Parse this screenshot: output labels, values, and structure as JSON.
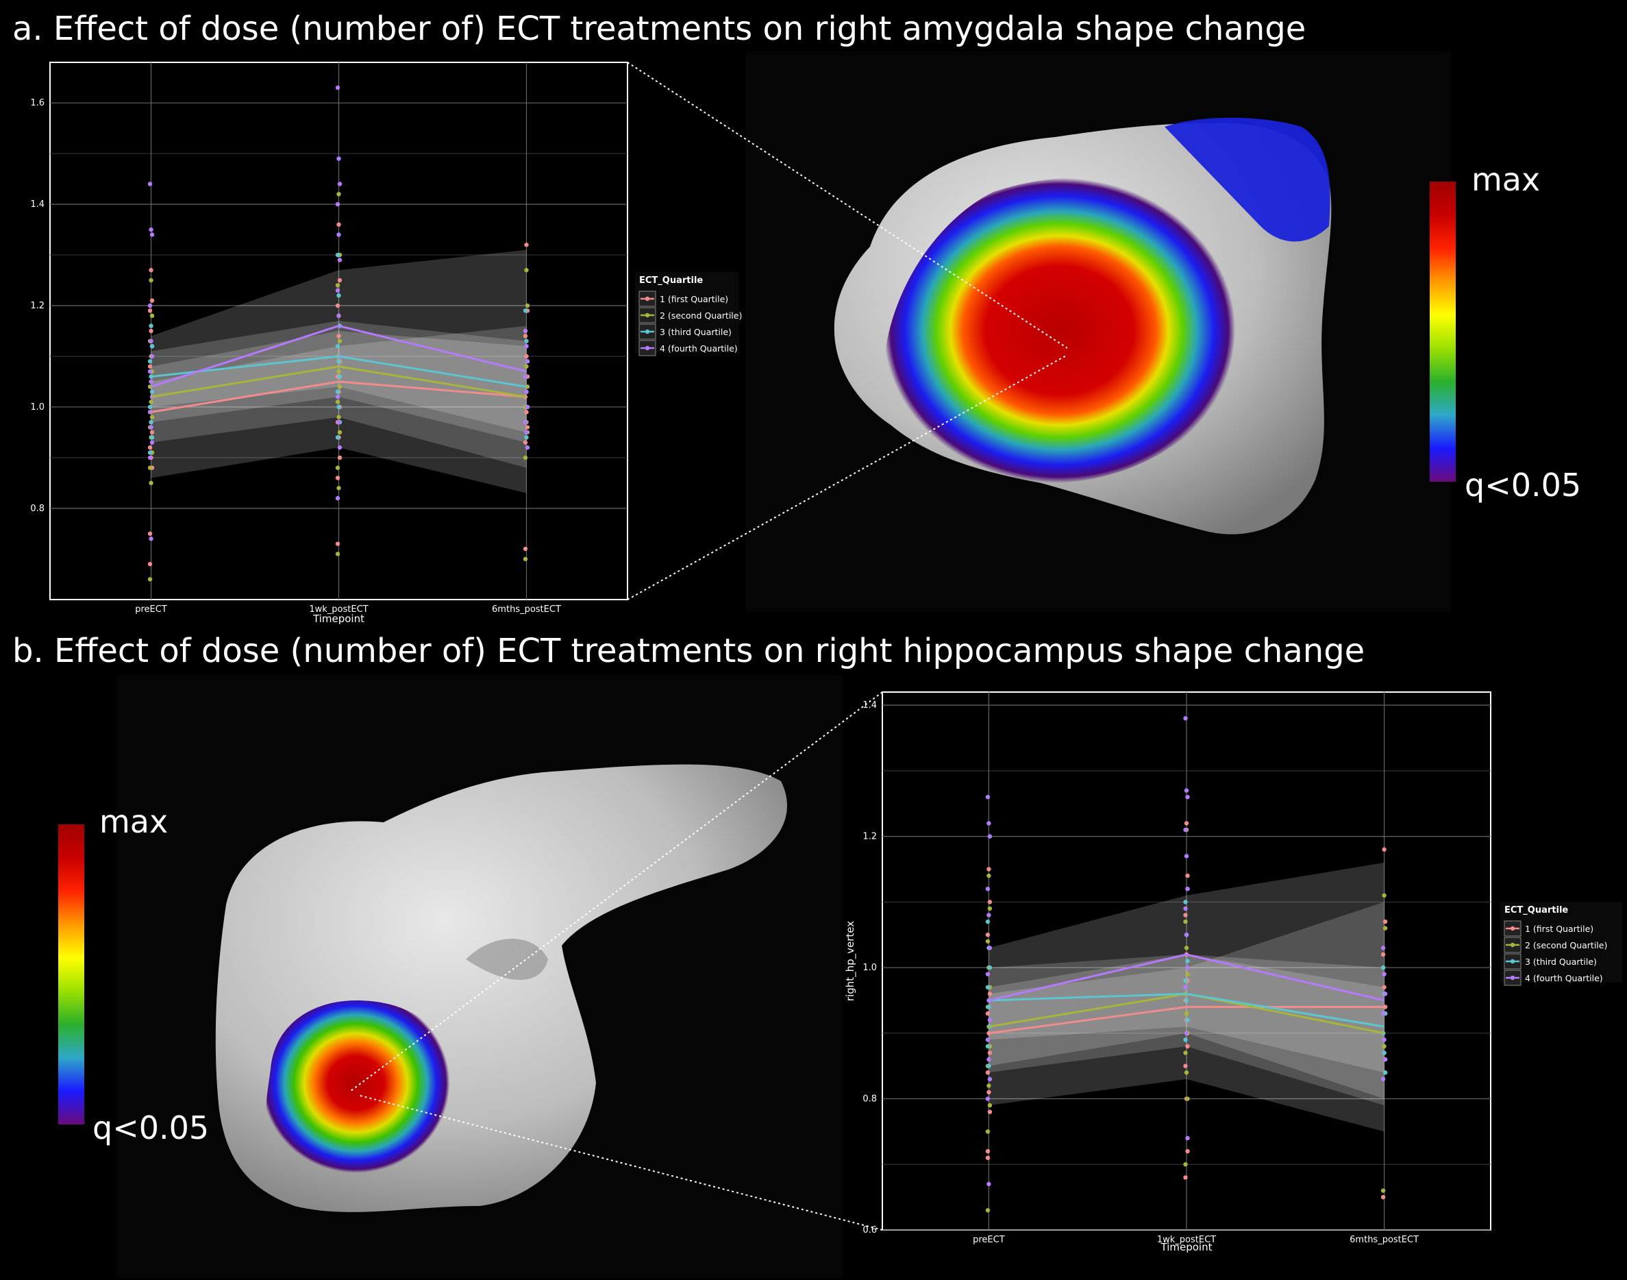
{
  "titles": {
    "a": "a. Effect of dose (number of) ECT treatments  on right amygdala shape change",
    "b": "b. Effect of dose (number of) ECT treatments  on right hippocampus shape change"
  },
  "colors": {
    "background": "#000000",
    "q1": "#f28c8c",
    "q2": "#a8b43a",
    "q3": "#5bc6d0",
    "q4": "#b57bff",
    "band": "#ffffff",
    "colorbar": [
      "#6a0a7a",
      "#1a1aff",
      "#2ea8c8",
      "#2bb02b",
      "#9be000",
      "#ffff00",
      "#ff9900",
      "#ff2200",
      "#c80000",
      "#a00000"
    ]
  },
  "colorbar_labels": {
    "max": "max",
    "min": "q<0.05"
  },
  "chart_data": [
    {
      "id": "a",
      "type": "scatter",
      "title": "",
      "xlabel": "Timepoint",
      "ylabel": "",
      "categories": [
        "preECT",
        "1wk_postECT",
        "6mths_postECT"
      ],
      "ylim": [
        0.62,
        1.68
      ],
      "yticks": [
        0.8,
        1.0,
        1.2,
        1.4,
        1.6
      ],
      "grid": true,
      "legend_position": "right",
      "legend_title": "ECT_Quartile",
      "series": [
        {
          "name": "1 (first Quartile)",
          "color_key": "q1",
          "mean": [
            0.99,
            1.05,
            1.02
          ],
          "band_low": [
            0.93,
            0.98,
            0.88
          ],
          "band_high": [
            1.05,
            1.12,
            1.16
          ],
          "points": [
            [
              0.69,
              1.27,
              1.21,
              1.19,
              1.15,
              1.12,
              1.08,
              1.05,
              1.02,
              0.99,
              0.97,
              0.95,
              0.92,
              0.9,
              0.88,
              0.75
            ],
            [
              0.73,
              1.36,
              1.25,
              1.2,
              1.14,
              1.09,
              1.06,
              1.03,
              1.0,
              0.97,
              0.94,
              0.9,
              0.86
            ],
            [
              0.72,
              1.32,
              1.19,
              1.14,
              1.1,
              1.06,
              1.02,
              0.99,
              0.96,
              0.93
            ]
          ]
        },
        {
          "name": "2 (second Quartile)",
          "color_key": "q2",
          "mean": [
            1.02,
            1.08,
            1.02
          ],
          "band_low": [
            0.97,
            1.02,
            0.93
          ],
          "band_high": [
            1.08,
            1.15,
            1.12
          ],
          "points": [
            [
              0.66,
              1.25,
              1.18,
              1.13,
              1.1,
              1.07,
              1.04,
              1.01,
              0.98,
              0.96,
              0.94,
              0.91,
              0.88,
              0.85
            ],
            [
              0.71,
              1.42,
              1.3,
              1.24,
              1.18,
              1.13,
              1.1,
              1.07,
              1.04,
              1.01,
              0.98,
              0.95,
              0.88,
              0.84
            ],
            [
              0.7,
              1.27,
              1.2,
              1.15,
              1.08,
              1.04,
              1.0,
              0.97,
              0.95,
              0.9
            ]
          ]
        },
        {
          "name": "3 (third Quartile)",
          "color_key": "q3",
          "mean": [
            1.06,
            1.1,
            1.04
          ],
          "band_low": [
            1.0,
            1.04,
            0.95
          ],
          "band_high": [
            1.11,
            1.17,
            1.13
          ],
          "points": [
            [
              1.2,
              1.16,
              1.12,
              1.09,
              1.06,
              1.03,
              1.0,
              0.97,
              0.94,
              0.91
            ],
            [
              1.3,
              1.22,
              1.16,
              1.12,
              1.09,
              1.06,
              1.03,
              1.0,
              0.97,
              0.94
            ],
            [
              1.19,
              1.13,
              1.09,
              1.06,
              1.03,
              1.0,
              0.97,
              0.94
            ]
          ]
        },
        {
          "name": "4 (fourth Quartile)",
          "color_key": "q4",
          "mean": [
            1.04,
            1.16,
            1.07
          ],
          "band_low": [
            0.86,
            0.92,
            0.83
          ],
          "band_high": [
            1.14,
            1.27,
            1.31
          ],
          "points": [
            [
              1.44,
              1.35,
              1.34,
              1.2,
              1.13,
              1.1,
              1.07,
              1.05,
              1.02,
              0.99,
              0.96,
              0.93,
              0.9,
              0.74
            ],
            [
              1.63,
              1.49,
              1.44,
              1.4,
              1.34,
              1.29,
              1.23,
              1.18,
              1.1,
              1.02,
              0.97,
              0.92,
              0.82
            ],
            [
              1.15,
              1.12,
              1.09,
              1.06,
              1.03,
              1.0,
              0.97,
              0.95,
              0.92
            ]
          ]
        }
      ]
    },
    {
      "id": "b",
      "type": "scatter",
      "title": "",
      "xlabel": "Timepoint",
      "ylabel": "right_hp_vertex",
      "categories": [
        "preECT",
        "1wk_postECT",
        "6mths_postECT"
      ],
      "ylim": [
        0.6,
        1.42
      ],
      "yticks": [
        0.6,
        0.8,
        1.0,
        1.2,
        1.4
      ],
      "grid": true,
      "legend_position": "right",
      "legend_title": "ECT_Quartile",
      "series": [
        {
          "name": "1 (first Quartile)",
          "color_key": "q1",
          "mean": [
            0.9,
            0.94,
            0.94
          ],
          "band_low": [
            0.84,
            0.88,
            0.79
          ],
          "band_high": [
            0.96,
            1.0,
            1.1
          ],
          "points": [
            [
              0.71,
              1.15,
              1.1,
              1.05,
              1.0,
              0.96,
              0.93,
              0.9,
              0.87,
              0.84,
              0.81,
              0.78,
              0.72
            ],
            [
              0.68,
              1.22,
              1.14,
              1.08,
              1.02,
              0.98,
              0.95,
              0.92,
              0.88,
              0.85,
              0.8,
              0.72
            ],
            [
              0.65,
              1.18,
              1.07,
              1.02,
              0.97,
              0.94,
              0.9,
              0.87,
              0.84
            ]
          ]
        },
        {
          "name": "2 (second Quartile)",
          "color_key": "q2",
          "mean": [
            0.91,
            0.96,
            0.9
          ],
          "band_low": [
            0.85,
            0.9,
            0.8
          ],
          "band_high": [
            0.97,
            1.02,
            1.0
          ],
          "points": [
            [
              0.63,
              1.14,
              1.09,
              1.04,
              1.0,
              0.97,
              0.94,
              0.91,
              0.88,
              0.85,
              0.82,
              0.79,
              0.75
            ],
            [
              0.7,
              1.21,
              1.12,
              1.07,
              1.03,
              0.99,
              0.96,
              0.93,
              0.9,
              0.87,
              0.84,
              0.8
            ],
            [
              0.66,
              1.11,
              1.06,
              1.0,
              0.96,
              0.93,
              0.9,
              0.88,
              0.86
            ]
          ]
        },
        {
          "name": "3 (third Quartile)",
          "color_key": "q3",
          "mean": [
            0.95,
            0.96,
            0.91
          ],
          "band_low": [
            0.89,
            0.91,
            0.84
          ],
          "band_high": [
            1.0,
            1.02,
            0.97
          ],
          "points": [
            [
              1.07,
              1.03,
              1.0,
              0.97,
              0.94,
              0.91,
              0.88,
              0.85
            ],
            [
              1.1,
              1.05,
              1.01,
              0.98,
              0.95,
              0.92,
              0.89
            ],
            [
              1.0,
              0.96,
              0.93,
              0.9,
              0.87,
              0.84
            ]
          ]
        },
        {
          "name": "4 (fourth Quartile)",
          "color_key": "q4",
          "mean": [
            0.95,
            1.02,
            0.95
          ],
          "band_low": [
            0.79,
            0.83,
            0.75
          ],
          "band_high": [
            1.03,
            1.11,
            1.16
          ],
          "points": [
            [
              1.26,
              1.22,
              1.2,
              1.12,
              1.08,
              1.03,
              0.99,
              0.95,
              0.92,
              0.89,
              0.86,
              0.83,
              0.8,
              0.67
            ],
            [
              1.38,
              1.27,
              1.26,
              1.21,
              1.17,
              1.12,
              1.09,
              1.05,
              1.0,
              0.97,
              0.9,
              0.74
            ],
            [
              1.03,
              0.99,
              0.96,
              0.93,
              0.89,
              0.86,
              0.83
            ]
          ]
        }
      ]
    }
  ]
}
